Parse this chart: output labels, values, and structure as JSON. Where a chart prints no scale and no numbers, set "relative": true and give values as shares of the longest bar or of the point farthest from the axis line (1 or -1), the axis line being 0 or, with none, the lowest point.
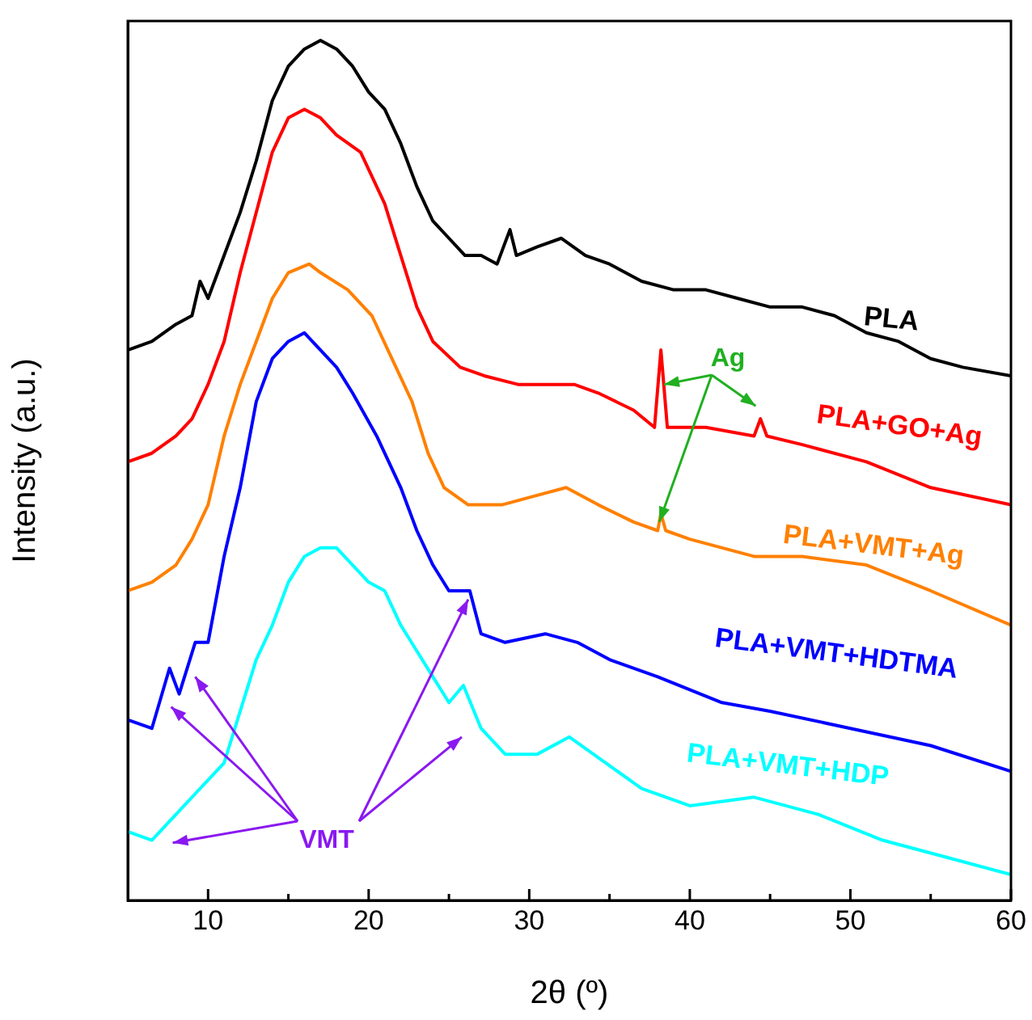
{
  "chart_data": {
    "type": "line",
    "relative": true,
    "xlabel": "2θ (º)",
    "ylabel": "Intensity (a.u.)",
    "xlim": [
      5,
      60
    ],
    "xticks": [
      10,
      {
        "value": 15,
        "label": null
      },
      20,
      {
        "value": 25,
        "label": null
      },
      30,
      {
        "value": 35,
        "label": null
      },
      40,
      {
        "value": 45,
        "label": null
      },
      50,
      {
        "value": 55,
        "label": null
      },
      60
    ],
    "legend": false,
    "grid": false,
    "marker": "none",
    "line_style": "solid",
    "annotations": [
      "Ag",
      "VMT"
    ],
    "series": [
      {
        "name": "PLA",
        "color": "#000000",
        "x": [
          5,
          6.5,
          8,
          9,
          9.5,
          10,
          11,
          12,
          13,
          14,
          15,
          16,
          17,
          18,
          19,
          20,
          21,
          22,
          23,
          24,
          25,
          26,
          27,
          28,
          28.8,
          29.2,
          30.5,
          32,
          33.5,
          35,
          37,
          39,
          41,
          43,
          45,
          47,
          49,
          51,
          53,
          55,
          57,
          60
        ],
        "values": [
          0.64,
          0.65,
          0.67,
          0.68,
          0.72,
          0.7,
          0.75,
          0.8,
          0.86,
          0.93,
          0.97,
          0.99,
          1.0,
          0.99,
          0.97,
          0.94,
          0.92,
          0.88,
          0.83,
          0.79,
          0.77,
          0.75,
          0.75,
          0.74,
          0.78,
          0.75,
          0.76,
          0.77,
          0.75,
          0.74,
          0.72,
          0.71,
          0.71,
          0.7,
          0.69,
          0.69,
          0.68,
          0.66,
          0.65,
          0.63,
          0.62,
          0.61
        ]
      },
      {
        "name": "PLA+GO+Ag",
        "color": "#ff0000",
        "x": [
          5,
          6.5,
          8,
          9,
          10,
          11,
          12,
          13,
          14,
          15,
          16,
          17,
          18,
          19.5,
          21,
          22,
          23,
          24,
          25.7,
          27.2,
          29.3,
          31.3,
          32.8,
          34.3,
          36.5,
          37.8,
          38.2,
          38.6,
          41,
          44,
          44.4,
          44.8,
          47,
          51,
          55,
          60
        ],
        "values": [
          0.51,
          0.52,
          0.54,
          0.56,
          0.6,
          0.65,
          0.73,
          0.8,
          0.87,
          0.91,
          0.92,
          0.91,
          0.89,
          0.87,
          0.81,
          0.75,
          0.69,
          0.65,
          0.62,
          0.61,
          0.6,
          0.6,
          0.6,
          0.59,
          0.57,
          0.55,
          0.64,
          0.55,
          0.55,
          0.54,
          0.56,
          0.54,
          0.53,
          0.51,
          0.48,
          0.46
        ]
      },
      {
        "name": "PLA+VMT+Ag",
        "color": "#ff8000",
        "x": [
          5,
          6.5,
          8,
          9,
          10,
          11,
          12,
          13,
          14,
          15,
          16.3,
          17,
          18.7,
          20.2,
          21.7,
          22.7,
          23.7,
          24.7,
          26.2,
          28.3,
          30.3,
          32.3,
          34.3,
          36.5,
          38,
          38.2,
          38.5,
          40,
          44,
          47,
          51,
          55,
          60
        ],
        "values": [
          0.36,
          0.37,
          0.39,
          0.42,
          0.46,
          0.54,
          0.6,
          0.65,
          0.7,
          0.73,
          0.74,
          0.73,
          0.71,
          0.68,
          0.62,
          0.58,
          0.52,
          0.48,
          0.46,
          0.46,
          0.47,
          0.48,
          0.46,
          0.44,
          0.43,
          0.45,
          0.43,
          0.42,
          0.4,
          0.4,
          0.39,
          0.36,
          0.32
        ]
      },
      {
        "name": "PLA+VMT+HDTMA",
        "color": "#0000ff",
        "x": [
          5,
          6.5,
          7.6,
          8.2,
          9.2,
          10,
          11,
          12,
          13,
          14,
          15,
          16,
          17,
          18,
          19,
          20.5,
          22,
          23,
          24,
          25,
          26.3,
          27,
          28.5,
          31,
          33,
          35,
          38,
          42,
          45,
          50,
          55,
          60
        ],
        "values": [
          0.21,
          0.2,
          0.27,
          0.24,
          0.3,
          0.3,
          0.4,
          0.48,
          0.58,
          0.63,
          0.65,
          0.66,
          0.64,
          0.62,
          0.59,
          0.54,
          0.48,
          0.43,
          0.39,
          0.36,
          0.36,
          0.31,
          0.3,
          0.31,
          0.3,
          0.28,
          0.26,
          0.23,
          0.22,
          0.2,
          0.18,
          0.15
        ]
      },
      {
        "name": "PLA+VMT+HDP",
        "color": "#00ffff",
        "x": [
          5,
          6.5,
          8,
          10,
          11,
          12,
          13,
          14,
          15,
          16,
          17,
          18,
          19,
          20,
          21,
          22,
          23,
          24,
          25,
          25.9,
          27,
          28.5,
          30.5,
          32.5,
          34,
          37,
          40,
          44,
          48,
          52,
          56,
          60
        ],
        "values": [
          0.08,
          0.07,
          0.1,
          0.14,
          0.16,
          0.22,
          0.28,
          0.32,
          0.37,
          0.4,
          0.41,
          0.41,
          0.39,
          0.37,
          0.36,
          0.32,
          0.29,
          0.26,
          0.23,
          0.25,
          0.2,
          0.17,
          0.17,
          0.19,
          0.17,
          0.13,
          0.11,
          0.12,
          0.1,
          0.07,
          0.05,
          0.03
        ]
      }
    ]
  }
}
